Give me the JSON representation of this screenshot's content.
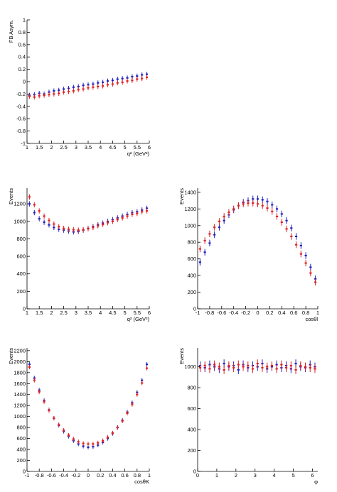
{
  "chart_data": [
    {
      "type": "scatter",
      "y_label": "FB Asym.",
      "x_label": "q² (GeV²)",
      "xlim": [
        1,
        6
      ],
      "xticks": [
        1,
        1.5,
        2,
        2.5,
        3,
        3.5,
        4,
        4.5,
        5,
        5.5,
        6
      ],
      "ylim": [
        -1,
        1
      ],
      "yticks": [
        -1,
        -0.8,
        -0.6,
        -0.4,
        -0.2,
        0,
        0.2,
        0.4,
        0.6,
        0.8,
        1
      ],
      "x": [
        1.1,
        1.3,
        1.5,
        1.7,
        1.9,
        2.1,
        2.3,
        2.5,
        2.7,
        2.9,
        3.1,
        3.3,
        3.5,
        3.7,
        3.9,
        4.1,
        4.3,
        4.5,
        4.7,
        4.9,
        5.1,
        5.3,
        5.5,
        5.7,
        5.9
      ],
      "series": [
        {
          "color": "#2020c0",
          "error": 0.04,
          "values": [
            -0.22,
            -0.21,
            -0.19,
            -0.2,
            -0.17,
            -0.15,
            -0.14,
            -0.12,
            -0.11,
            -0.09,
            -0.08,
            -0.06,
            -0.05,
            -0.04,
            -0.02,
            -0.01,
            0.01,
            0.02,
            0.04,
            0.05,
            0.06,
            0.08,
            0.09,
            0.11,
            0.12
          ]
        },
        {
          "color": "#e02020",
          "error": 0.04,
          "values": [
            -0.24,
            -0.25,
            -0.23,
            -0.22,
            -0.21,
            -0.2,
            -0.19,
            -0.17,
            -0.16,
            -0.15,
            -0.13,
            -0.12,
            -0.1,
            -0.09,
            -0.08,
            -0.07,
            -0.05,
            -0.04,
            -0.02,
            -0.01,
            0.01,
            0.02,
            0.04,
            0.05,
            0.07
          ]
        }
      ]
    },
    {
      "type": "scatter",
      "y_label": "Events",
      "x_label": "q² (GeV²)",
      "xlim": [
        1,
        6
      ],
      "xticks": [
        1,
        1.5,
        2,
        2.5,
        3,
        3.5,
        4,
        4.5,
        5,
        5.5,
        6
      ],
      "ylim": [
        0,
        1380
      ],
      "yticks": [
        0,
        200,
        400,
        600,
        800,
        1000,
        1200
      ],
      "x": [
        1.1,
        1.3,
        1.5,
        1.7,
        1.9,
        2.1,
        2.3,
        2.5,
        2.7,
        2.9,
        3.1,
        3.3,
        3.5,
        3.7,
        3.9,
        4.1,
        4.3,
        4.5,
        4.7,
        4.9,
        5.1,
        5.3,
        5.5,
        5.7,
        5.9
      ],
      "series": [
        {
          "color": "#2020c0",
          "error": 30,
          "values": [
            1200,
            1100,
            1030,
            990,
            960,
            930,
            910,
            900,
            890,
            880,
            885,
            900,
            920,
            940,
            960,
            980,
            1000,
            1020,
            1040,
            1060,
            1080,
            1100,
            1110,
            1130,
            1150
          ]
        },
        {
          "color": "#e02020",
          "error": 30,
          "values": [
            1280,
            1190,
            1120,
            1060,
            1010,
            970,
            940,
            920,
            910,
            905,
            900,
            905,
            915,
            930,
            950,
            965,
            985,
            1000,
            1020,
            1040,
            1060,
            1080,
            1090,
            1110,
            1120
          ]
        }
      ]
    },
    {
      "type": "scatter",
      "y_label": "Events",
      "x_label": "cosθl",
      "xlim": [
        -1,
        1
      ],
      "xticks": [
        -1,
        -0.8,
        -0.6,
        -0.4,
        -0.2,
        0,
        0.2,
        0.4,
        0.6,
        0.8,
        1
      ],
      "ylim": [
        0,
        1450
      ],
      "yticks": [
        0,
        200,
        400,
        600,
        800,
        1000,
        1200,
        1400
      ],
      "x": [
        -0.96,
        -0.88,
        -0.8,
        -0.72,
        -0.64,
        -0.56,
        -0.48,
        -0.4,
        -0.32,
        -0.24,
        -0.16,
        -0.08,
        0,
        0.08,
        0.16,
        0.24,
        0.32,
        0.4,
        0.48,
        0.56,
        0.64,
        0.72,
        0.8,
        0.88,
        0.96
      ],
      "series": [
        {
          "color": "#2020c0",
          "error": 40,
          "values": [
            560,
            680,
            790,
            890,
            980,
            1060,
            1130,
            1190,
            1240,
            1280,
            1300,
            1320,
            1320,
            1310,
            1290,
            1250,
            1200,
            1140,
            1060,
            970,
            870,
            760,
            640,
            500,
            360
          ]
        },
        {
          "color": "#e02020",
          "error": 40,
          "values": [
            720,
            820,
            900,
            980,
            1050,
            1110,
            1160,
            1200,
            1240,
            1260,
            1270,
            1270,
            1260,
            1240,
            1210,
            1170,
            1110,
            1040,
            960,
            870,
            770,
            660,
            550,
            430,
            320
          ]
        }
      ]
    },
    {
      "type": "scatter",
      "y_label": "Events",
      "x_label": "cosθK",
      "xlim": [
        -1,
        1
      ],
      "xticks": [
        -1,
        -0.8,
        -0.6,
        -0.4,
        -0.2,
        0,
        0.2,
        0.4,
        0.6,
        0.8,
        1
      ],
      "ylim": [
        0,
        2250
      ],
      "yticks": [
        0,
        200,
        400,
        600,
        800,
        1000,
        1200,
        1400,
        1600,
        1800,
        2000,
        2200
      ],
      "x": [
        -0.96,
        -0.88,
        -0.8,
        -0.72,
        -0.64,
        -0.56,
        -0.48,
        -0.4,
        -0.32,
        -0.24,
        -0.16,
        -0.08,
        0,
        0.08,
        0.16,
        0.24,
        0.32,
        0.4,
        0.48,
        0.56,
        0.64,
        0.72,
        0.8,
        0.88,
        0.96
      ],
      "series": [
        {
          "color": "#2020c0",
          "error": 40,
          "values": [
            1950,
            1700,
            1480,
            1290,
            1120,
            970,
            840,
            730,
            640,
            560,
            500,
            460,
            440,
            450,
            480,
            530,
            600,
            690,
            800,
            930,
            1080,
            1250,
            1440,
            1660,
            1950
          ]
        },
        {
          "color": "#e02020",
          "error": 40,
          "values": [
            1900,
            1660,
            1450,
            1270,
            1110,
            970,
            850,
            750,
            660,
            590,
            540,
            510,
            500,
            500,
            520,
            560,
            620,
            700,
            800,
            920,
            1060,
            1220,
            1400,
            1610,
            1880
          ]
        }
      ]
    },
    {
      "type": "scatter",
      "y_label": "Events",
      "x_label": "φ",
      "xlim": [
        0,
        6.28
      ],
      "xticks": [
        0,
        1,
        2,
        3,
        4,
        5,
        6
      ],
      "ylim": [
        0,
        1180
      ],
      "yticks": [
        0,
        200,
        400,
        600,
        800,
        1000
      ],
      "x": [
        0.13,
        0.38,
        0.63,
        0.88,
        1.13,
        1.38,
        1.63,
        1.88,
        2.13,
        2.38,
        2.63,
        2.88,
        3.13,
        3.38,
        3.63,
        3.88,
        4.13,
        4.38,
        4.63,
        4.88,
        5.13,
        5.38,
        5.63,
        5.88,
        6.13
      ],
      "series": [
        {
          "color": "#2020c0",
          "error": 40,
          "values": [
            1010,
            990,
            1020,
            1000,
            980,
            1030,
            1000,
            1010,
            970,
            1020,
            990,
            1010,
            1000,
            1030,
            980,
            1000,
            1020,
            990,
            1010,
            980,
            1030,
            1000,
            990,
            1020,
            1000
          ]
        },
        {
          "color": "#e02020",
          "error": 40,
          "values": [
            990,
            1010,
            980,
            1020,
            1000,
            970,
            1010,
            990,
            1020,
            1000,
            1010,
            980,
            1030,
            990,
            1000,
            1010,
            980,
            1020,
            990,
            1010,
            970,
            1010,
            1000,
            990,
            980
          ]
        }
      ]
    }
  ]
}
